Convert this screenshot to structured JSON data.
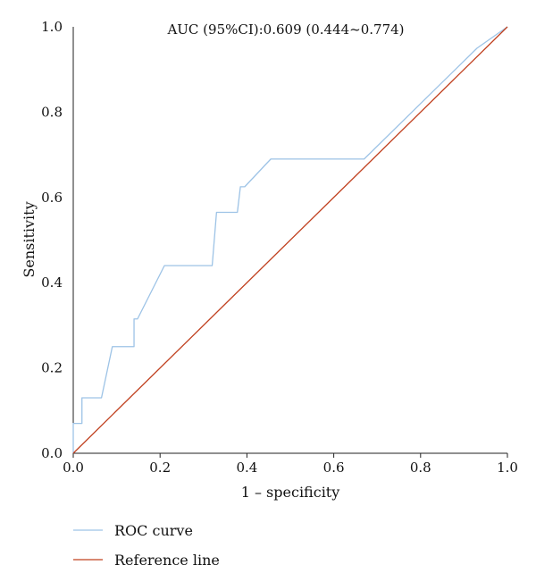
{
  "chart_data": {
    "type": "line",
    "title": "",
    "annotation": "AUC (95%CI):0.609 (0.444~0.774)",
    "xlabel": "1 – specificity",
    "ylabel": "Sensitivity",
    "xlim": [
      0,
      1
    ],
    "ylim": [
      0,
      1
    ],
    "xticks": [
      "0.0",
      "0.2",
      "0.4",
      "0.6",
      "0.8",
      "1.0"
    ],
    "yticks": [
      "0.0",
      "0.2",
      "0.4",
      "0.6",
      "0.8",
      "1.0"
    ],
    "grid": false,
    "legend": "bottom-left",
    "series": [
      {
        "name": "ROC curve",
        "color": "#9dc3e6",
        "x": [
          0.0,
          0.0,
          0.02,
          0.02,
          0.065,
          0.09,
          0.14,
          0.14,
          0.148,
          0.21,
          0.32,
          0.33,
          0.378,
          0.385,
          0.395,
          0.455,
          0.67,
          0.93,
          1.0
        ],
        "y": [
          0.0,
          0.07,
          0.07,
          0.13,
          0.13,
          0.25,
          0.25,
          0.315,
          0.315,
          0.44,
          0.44,
          0.565,
          0.565,
          0.625,
          0.625,
          0.69,
          0.69,
          0.95,
          1.0
        ]
      },
      {
        "name": "Reference line",
        "color": "#c0401f",
        "x": [
          0,
          1
        ],
        "y": [
          0,
          1
        ]
      }
    ]
  }
}
